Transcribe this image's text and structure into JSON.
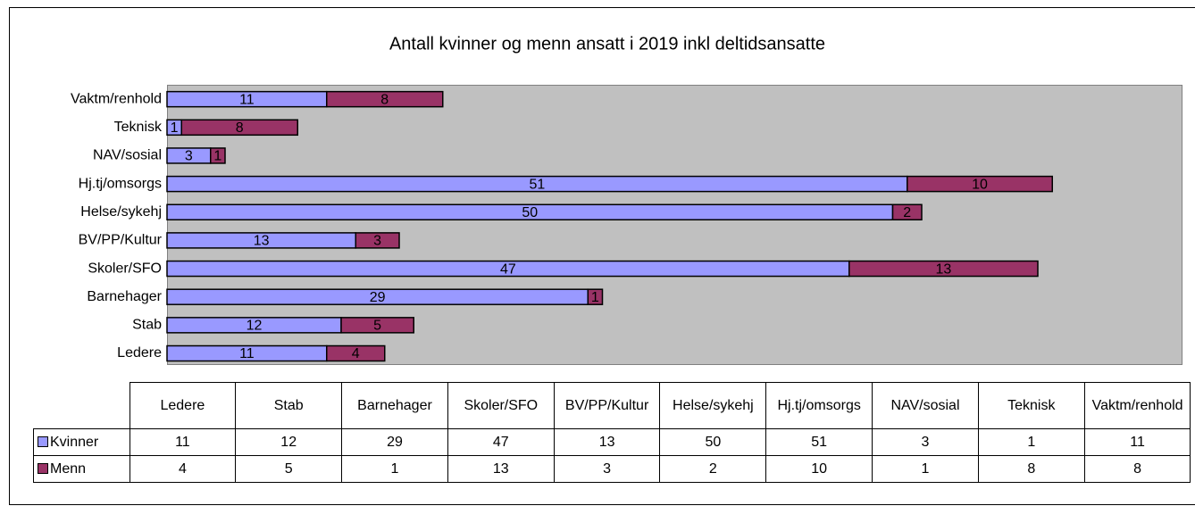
{
  "chart_data": {
    "type": "bar",
    "orientation": "horizontal",
    "stacked": true,
    "title": "Antall kvinner og menn ansatt i 2019 inkl deltidsansatte",
    "categories": [
      "Ledere",
      "Stab",
      "Barnehager",
      "Skoler/SFO",
      "BV/PP/Kultur",
      "Helse/sykehj",
      "Hj.tj/omsorgs",
      "NAV/sosial",
      "Teknisk",
      "Vaktm/renhold"
    ],
    "series": [
      {
        "name": "Kvinner",
        "color": "#9999ff",
        "values": [
          11,
          12,
          29,
          47,
          13,
          50,
          51,
          3,
          1,
          11
        ]
      },
      {
        "name": "Menn",
        "color": "#993366",
        "values": [
          4,
          5,
          1,
          13,
          3,
          2,
          10,
          1,
          8,
          8
        ]
      }
    ],
    "data_table": true
  }
}
